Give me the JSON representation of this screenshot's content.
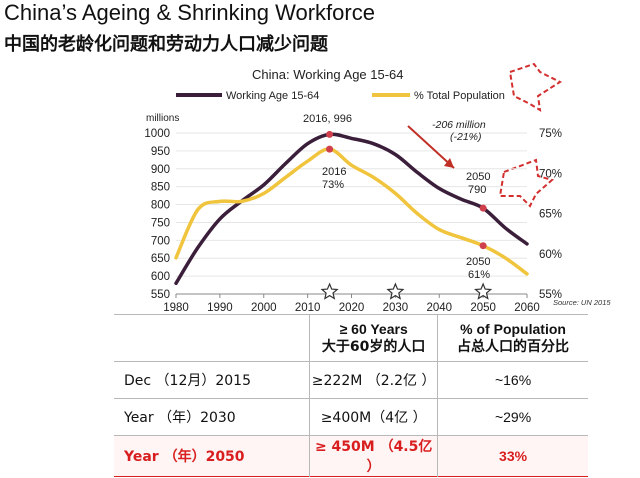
{
  "title": "China’s Ageing & Shrinking  Workforce",
  "subtitle_cn": "中国的老龄化问题和劳动力人口减少问题",
  "chart_data": {
    "type": "line",
    "title": "China: Working Age 15-64",
    "ylabel_left": "millions",
    "source": "Source: UN 2015",
    "x": [
      1980,
      1985,
      1990,
      1995,
      2000,
      2005,
      2010,
      2015,
      2020,
      2025,
      2030,
      2035,
      2040,
      2045,
      2050,
      2055,
      2060
    ],
    "xlim": [
      1980,
      2060
    ],
    "x_ticks": [
      "1980",
      "1990",
      "2000",
      "2010",
      "2020",
      "2030",
      "2040",
      "2050",
      "2060"
    ],
    "y_left_lim": [
      550,
      1000
    ],
    "y_left_ticks": [
      "550",
      "600",
      "650",
      "700",
      "750",
      "800",
      "850",
      "900",
      "950",
      "1000"
    ],
    "y_right_lim": [
      55,
      75
    ],
    "y_right_ticks": [
      "55%",
      "60%",
      "65%",
      "70%",
      "75%"
    ],
    "series": [
      {
        "name": "Working Age 15-64",
        "axis": "left",
        "color": "#3a1e3a",
        "values": [
          580,
          680,
          760,
          810,
          855,
          915,
          970,
          996,
          985,
          970,
          940,
          890,
          845,
          815,
          790,
          735,
          690
        ]
      },
      {
        "name": "% Total Population",
        "axis": "right",
        "color": "#f0c43c",
        "values": [
          59.5,
          65.5,
          66.5,
          66.5,
          67.5,
          69.5,
          71.5,
          73,
          71,
          69.5,
          67.5,
          65,
          63,
          62,
          61,
          59.5,
          57.5
        ]
      }
    ],
    "annotations": [
      {
        "text": "2016, 996"
      },
      {
        "text": "2016"
      },
      {
        "text": "73%"
      },
      {
        "text": "2050"
      },
      {
        "text": "790"
      },
      {
        "text": "2050"
      },
      {
        "text": "61%"
      },
      {
        "text": "-206 million"
      },
      {
        "text": "(-21%)"
      }
    ],
    "star_years": [
      2015,
      2030,
      2050
    ],
    "colors": {
      "highlight_point": "#cf3f4c",
      "arrow": "#c03026",
      "dashed_callout": "#d32f2f"
    }
  },
  "table": {
    "headers": [
      [
        "",
        ""
      ],
      [
        "≥  60 Years",
        "大于60岁的人口"
      ],
      [
        "% of Population",
        "占总人口的百分比"
      ]
    ],
    "rows": [
      [
        "Dec （12月）2015",
        "≥222M （2.2亿 ）",
        "~16%"
      ],
      [
        "Year （年）2030",
        "≥400M（4亿 ）",
        "~29%"
      ],
      [
        "Year （年）2050",
        "≥  450M （4.5亿 ）",
        "33%"
      ]
    ],
    "highlight_color": "#d81e1e"
  }
}
